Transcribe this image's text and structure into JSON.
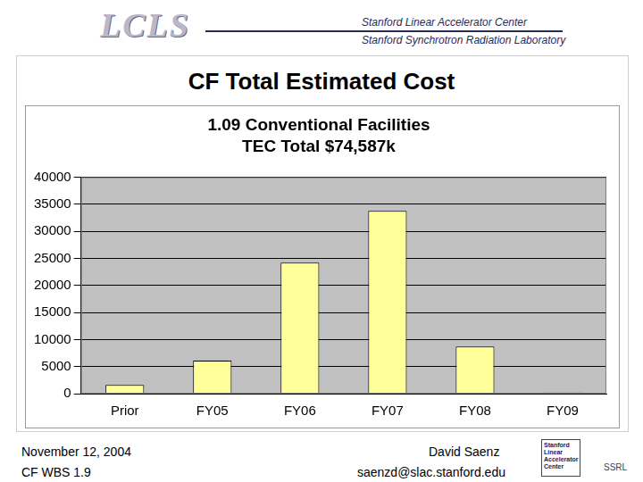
{
  "header": {
    "logo": "LCLS",
    "lines": [
      "Stanford Linear Accelerator Center",
      "Stanford Synchrotron Radiation Laboratory"
    ]
  },
  "slide_title": "CF Total Estimated Cost",
  "chart_data": {
    "type": "bar",
    "title": "1.09 Conventional Facilities",
    "subtitle": "TEC Total $74,587k",
    "categories": [
      "Prior",
      "FY05",
      "FY06",
      "FY07",
      "FY08",
      "FY09"
    ],
    "values": [
      1600,
      6100,
      24200,
      33800,
      8700,
      200
    ],
    "color": "#ffff99",
    "ylim": [
      0,
      40000
    ],
    "yticks": [
      0,
      5000,
      10000,
      15000,
      20000,
      25000,
      30000,
      35000,
      40000
    ],
    "grid": true
  },
  "footer": {
    "date": "November 12, 2004",
    "wbs": "CF WBS 1.9",
    "author": "David Saenz",
    "email": "saenzd@slac.stanford.edu",
    "logo_lines": [
      "Stanford",
      "Linear",
      "Accelerator",
      "Center"
    ],
    "logo_label": "SSRL"
  }
}
